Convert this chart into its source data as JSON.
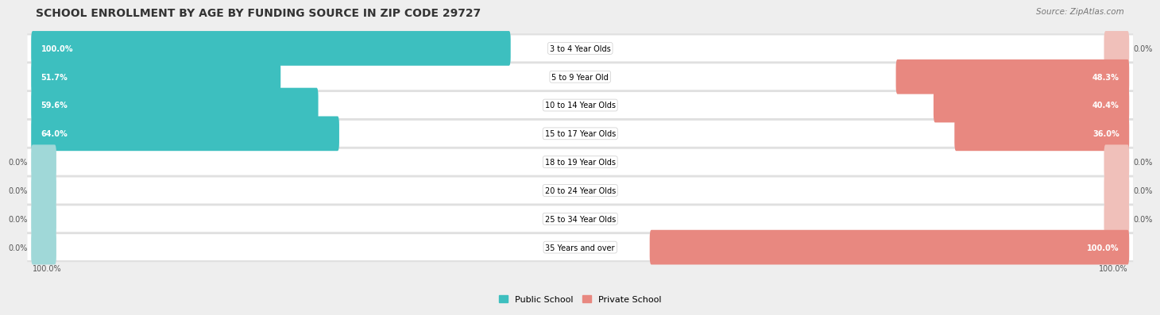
{
  "title": "SCHOOL ENROLLMENT BY AGE BY FUNDING SOURCE IN ZIP CODE 29727",
  "source": "Source: ZipAtlas.com",
  "categories": [
    "3 to 4 Year Olds",
    "5 to 9 Year Old",
    "10 to 14 Year Olds",
    "15 to 17 Year Olds",
    "18 to 19 Year Olds",
    "20 to 24 Year Olds",
    "25 to 34 Year Olds",
    "35 Years and over"
  ],
  "public_values": [
    100.0,
    51.7,
    59.6,
    64.0,
    0.0,
    0.0,
    0.0,
    0.0
  ],
  "private_values": [
    0.0,
    48.3,
    40.4,
    36.0,
    0.0,
    0.0,
    0.0,
    100.0
  ],
  "public_color": "#3DBFBF",
  "private_color": "#E88880",
  "public_zero_color": "#A0D8D8",
  "private_zero_color": "#F0C0BA",
  "bg_color": "#eeeeee",
  "title_fontsize": 10,
  "source_fontsize": 7.5,
  "label_fontsize": 7,
  "legend_fontsize": 8,
  "axis_label_fontsize": 7
}
